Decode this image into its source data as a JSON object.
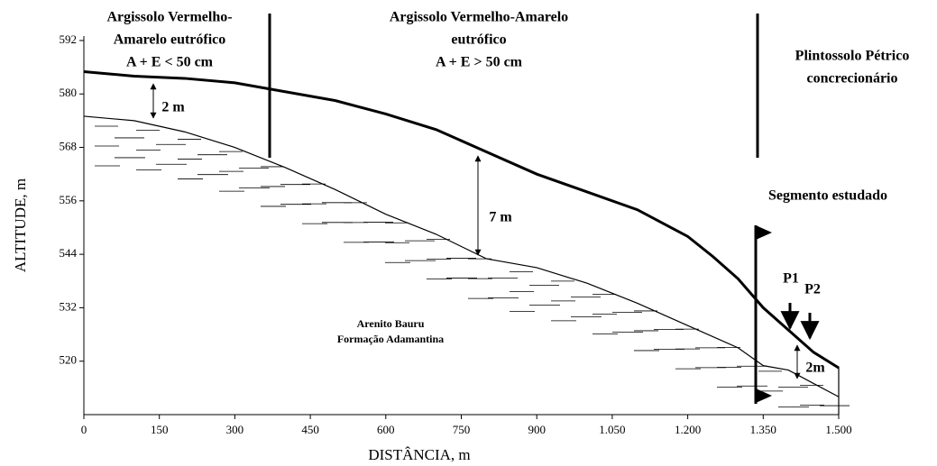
{
  "chart_data": {
    "type": "line",
    "xlabel": "DISTÂNCIA, m",
    "ylabel": "ALTITUDE, m",
    "xlim": [
      0,
      1500
    ],
    "ylim": [
      508,
      593
    ],
    "xticks": [
      0,
      150,
      300,
      450,
      600,
      750,
      900,
      {
        "value": 1050,
        "label": "1.050"
      },
      {
        "value": 1200,
        "label": "1.200"
      },
      {
        "value": 1350,
        "label": "1.350"
      },
      {
        "value": 1500,
        "label": "1.500"
      }
    ],
    "yticks": [
      520,
      532,
      544,
      556,
      568,
      580,
      592
    ],
    "series": [
      {
        "color": "#000000",
        "x": [
          0,
          100,
          200,
          300,
          400,
          500,
          600,
          700,
          800,
          900,
          1000,
          1100,
          1200,
          1250,
          1300,
          1350,
          1400,
          1450,
          1500
        ],
        "values": [
          585,
          584,
          583.5,
          582.5,
          580.5,
          578.5,
          575.5,
          572,
          567,
          562,
          558,
          554,
          548,
          543.5,
          538.5,
          532,
          527,
          522,
          518.5
        ]
      },
      {
        "color": "#000000",
        "x": [
          0,
          100,
          200,
          300,
          400,
          500,
          600,
          700,
          800,
          900,
          1000,
          1100,
          1200,
          1300,
          1350,
          1400,
          1450,
          1500
        ],
        "values": [
          575,
          574,
          571.5,
          568,
          563.5,
          558.5,
          553,
          548.5,
          543,
          541,
          537.5,
          533,
          528,
          523,
          519,
          518,
          515,
          512
        ]
      }
    ],
    "annotations": [
      "Argissolo Vermelho-",
      "Amarelo eutrófico",
      "A + E < 50 cm",
      "Argissolo Vermelho-Amarelo",
      "eutrófico",
      "A + E > 50 cm",
      "Plintossolo Pétrico",
      "concrecionário",
      "Segmento estudado",
      "P1",
      "P2",
      "2 m",
      "7 m",
      "2m",
      "Arenito Bauru",
      "Formação Adamantina"
    ]
  }
}
